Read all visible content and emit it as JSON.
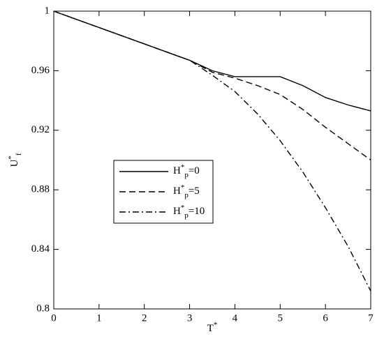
{
  "chart_data": {
    "type": "line",
    "xlabel": "T*",
    "ylabel": "U*f",
    "x": [
      0,
      1,
      2,
      3,
      3.5,
      4,
      4.5,
      5,
      5.5,
      6,
      6.5,
      7
    ],
    "series": [
      {
        "name": "H*p=0",
        "color": "#000000",
        "dash": "solid",
        "values": [
          1,
          0.989,
          0.978,
          0.967,
          0.96,
          0.956,
          0.956,
          0.956,
          0.95,
          0.942,
          0.937,
          0.933
        ]
      },
      {
        "name": "H*p=5",
        "color": "#000000",
        "dash": "dashed",
        "values": [
          1,
          0.989,
          0.978,
          0.967,
          0.959,
          0.955,
          0.95,
          0.944,
          0.934,
          0.922,
          0.911,
          0.9
        ]
      },
      {
        "name": "H*p=10",
        "color": "#000000",
        "dash": "dashdot",
        "values": [
          1,
          0.989,
          0.978,
          0.967,
          0.957,
          0.946,
          0.931,
          0.913,
          0.892,
          0.868,
          0.842,
          0.812
        ]
      }
    ],
    "xlim": [
      0,
      7
    ],
    "xticks": [
      0,
      1,
      2,
      3,
      4,
      5,
      6,
      7
    ],
    "ylim": [
      0.8,
      1
    ],
    "yticks": [
      0.8,
      0.84,
      0.88,
      0.92,
      0.96,
      1
    ],
    "legend": "center-left"
  }
}
